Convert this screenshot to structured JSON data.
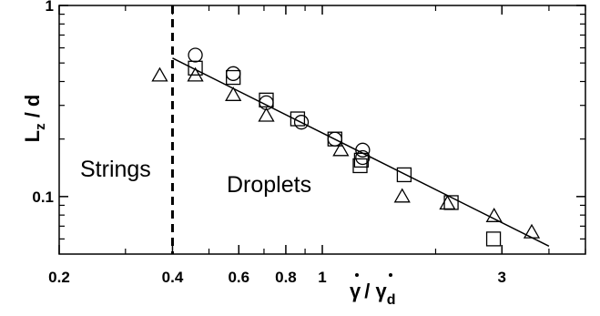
{
  "chart_data": {
    "type": "scatter",
    "scale": {
      "x": "log",
      "y": "log"
    },
    "xlim": [
      0.2,
      5.0
    ],
    "ylim": [
      0.05,
      1.0
    ],
    "xticks": [
      0.2,
      0.4,
      0.6,
      0.8,
      1,
      3
    ],
    "xtick_labels": [
      "0.2",
      "0.4",
      "0.6",
      "0.8",
      "1",
      "3"
    ],
    "yticks": [
      0.1,
      1
    ],
    "ytick_labels": [
      "0.1",
      "1"
    ],
    "ylabel": {
      "main": "L",
      "sub": "z",
      "rest": " / d"
    },
    "xlabel": {
      "num": "γ",
      "den": "γ",
      "sub": "d",
      "sep": "/ "
    },
    "regions": [
      {
        "label": "Strings"
      },
      {
        "label": "Droplets"
      }
    ],
    "boundary_x": 0.4,
    "fit_line": {
      "x": [
        0.4,
        4.0
      ],
      "y": [
        0.53,
        0.055
      ]
    },
    "series": [
      {
        "marker": "circle",
        "points": [
          [
            0.46,
            0.55
          ],
          [
            0.58,
            0.44
          ],
          [
            0.71,
            0.31
          ],
          [
            0.88,
            0.245
          ],
          [
            1.08,
            0.2
          ],
          [
            1.28,
            0.175
          ],
          [
            1.28,
            0.16
          ]
        ]
      },
      {
        "marker": "square",
        "points": [
          [
            0.46,
            0.47
          ],
          [
            0.58,
            0.42
          ],
          [
            0.71,
            0.32
          ],
          [
            0.86,
            0.255
          ],
          [
            1.08,
            0.2
          ],
          [
            1.27,
            0.155
          ],
          [
            1.26,
            0.145
          ],
          [
            1.65,
            0.13
          ],
          [
            2.2,
            0.093
          ],
          [
            2.85,
            0.06
          ]
        ]
      },
      {
        "marker": "triangle",
        "points": [
          [
            0.37,
            0.43
          ],
          [
            0.46,
            0.43
          ],
          [
            0.58,
            0.34
          ],
          [
            0.71,
            0.265
          ],
          [
            1.12,
            0.175
          ],
          [
            1.63,
            0.1
          ],
          [
            2.15,
            0.092
          ],
          [
            2.86,
            0.079
          ],
          [
            3.6,
            0.065
          ]
        ]
      }
    ]
  }
}
